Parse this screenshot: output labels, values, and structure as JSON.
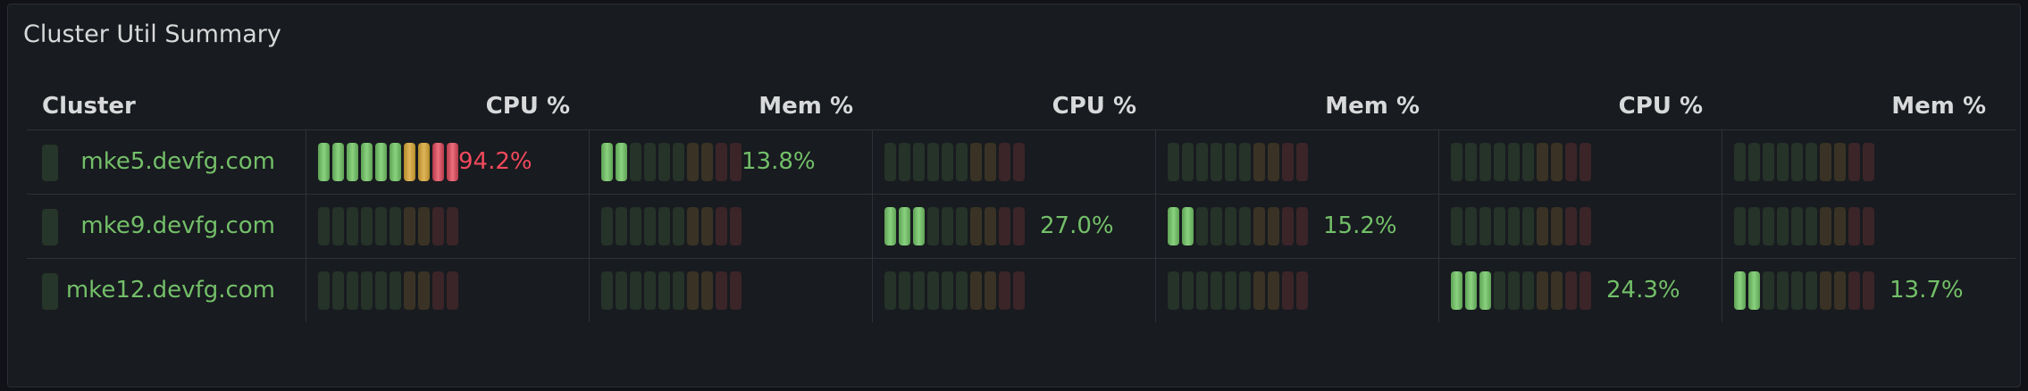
{
  "panel": {
    "title": "Cluster Util Summary"
  },
  "table": {
    "headers": [
      "Cluster",
      "CPU %",
      "Mem %",
      "CPU %",
      "Mem %",
      "CPU %",
      "Mem %"
    ],
    "rows": [
      {
        "cluster": "mke5.devfg.com",
        "metrics": [
          {
            "value_label": "94.2%",
            "level": 0.942,
            "status": "red"
          },
          {
            "value_label": "13.8%",
            "level": 0.138,
            "status": "green"
          },
          {
            "value_label": "",
            "level": 0,
            "status": "none"
          },
          {
            "value_label": "",
            "level": 0,
            "status": "none"
          },
          {
            "value_label": "",
            "level": 0,
            "status": "none"
          },
          {
            "value_label": "",
            "level": 0,
            "status": "none"
          }
        ]
      },
      {
        "cluster": "mke9.devfg.com",
        "metrics": [
          {
            "value_label": "",
            "level": 0,
            "status": "none"
          },
          {
            "value_label": "",
            "level": 0,
            "status": "none"
          },
          {
            "value_label": "27.0%",
            "level": 0.27,
            "status": "green"
          },
          {
            "value_label": "15.2%",
            "level": 0.152,
            "status": "green"
          },
          {
            "value_label": "",
            "level": 0,
            "status": "none"
          },
          {
            "value_label": "",
            "level": 0,
            "status": "none"
          }
        ]
      },
      {
        "cluster": "mke12.devfg.com",
        "metrics": [
          {
            "value_label": "",
            "level": 0,
            "status": "none"
          },
          {
            "value_label": "",
            "level": 0,
            "status": "none"
          },
          {
            "value_label": "",
            "level": 0,
            "status": "none"
          },
          {
            "value_label": "",
            "level": 0,
            "status": "none"
          },
          {
            "value_label": "24.3%",
            "level": 0.243,
            "status": "green"
          },
          {
            "value_label": "13.7%",
            "level": 0.137,
            "status": "green"
          }
        ]
      }
    ]
  },
  "colors": {
    "green": "#73bf69",
    "yellow": "#e0b65a",
    "red": "#f2495c",
    "text": "#d8d9da",
    "panel_bg": "#181b1f"
  }
}
